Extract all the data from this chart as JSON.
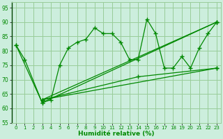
{
  "xlabel": "Humidité relative (%)",
  "background_color": "#cceedd",
  "grid_color": "#99cc99",
  "line_color": "#008800",
  "xlim": [
    -0.5,
    23.5
  ],
  "ylim": [
    55,
    97
  ],
  "yticks": [
    55,
    60,
    65,
    70,
    75,
    80,
    85,
    90,
    95
  ],
  "xticks": [
    0,
    1,
    2,
    3,
    4,
    5,
    6,
    7,
    8,
    9,
    10,
    11,
    12,
    13,
    14,
    15,
    16,
    17,
    18,
    19,
    20,
    21,
    22,
    23
  ],
  "series_main": {
    "x": [
      0,
      1,
      3,
      4,
      5,
      6,
      7,
      8,
      9,
      10,
      11,
      12,
      13,
      14,
      15,
      16,
      17,
      18,
      19,
      20,
      21,
      22,
      23
    ],
    "y": [
      82,
      77,
      62,
      63,
      75,
      81,
      83,
      84,
      88,
      86,
      86,
      83,
      77,
      77,
      91,
      86,
      74,
      74,
      78,
      74,
      81,
      86,
      90
    ]
  },
  "trend1": {
    "x": [
      0,
      3,
      23
    ],
    "y": [
      82,
      62,
      90
    ]
  },
  "trend2": {
    "x": [
      3,
      23
    ],
    "y": [
      63,
      74
    ]
  },
  "trend3": {
    "x": [
      3,
      14,
      23
    ],
    "y": [
      63,
      71,
      74
    ]
  },
  "trend4": {
    "x": [
      3,
      23
    ],
    "y": [
      63,
      90
    ]
  }
}
